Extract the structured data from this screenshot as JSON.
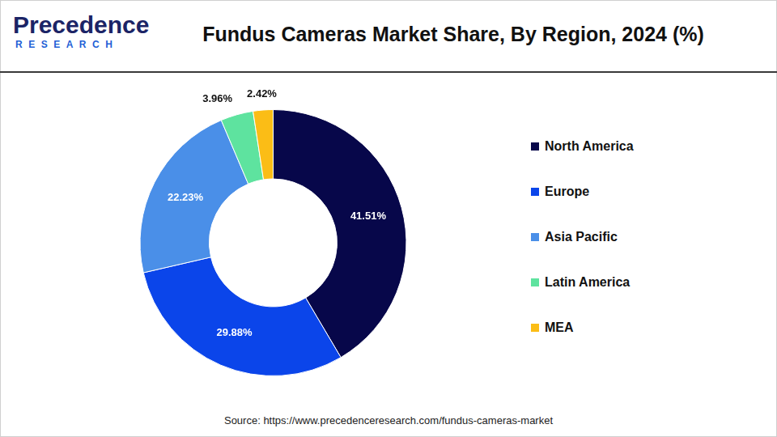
{
  "chart_data": {
    "type": "doughnut",
    "title": "Fundus Cameras Market Share, By Region, 2024 (%)",
    "logo": {
      "name": "Precedence",
      "tagline": "RESEARCH"
    },
    "categories": [
      "North America",
      "Europe",
      "Asia Pacific",
      "Latin America",
      "MEA"
    ],
    "values": [
      41.51,
      29.88,
      22.23,
      3.96,
      2.42
    ],
    "value_labels": [
      "41.51%",
      "29.88%",
      "22.23%",
      "3.96%",
      "2.42%"
    ],
    "colors": [
      "#07074a",
      "#0b45ea",
      "#4a8fe8",
      "#5ee39f",
      "#fbbd16"
    ],
    "data_labels": true,
    "legend": "right",
    "source": "Source: https://www.precedenceresearch.com/fundus-cameras-market"
  }
}
